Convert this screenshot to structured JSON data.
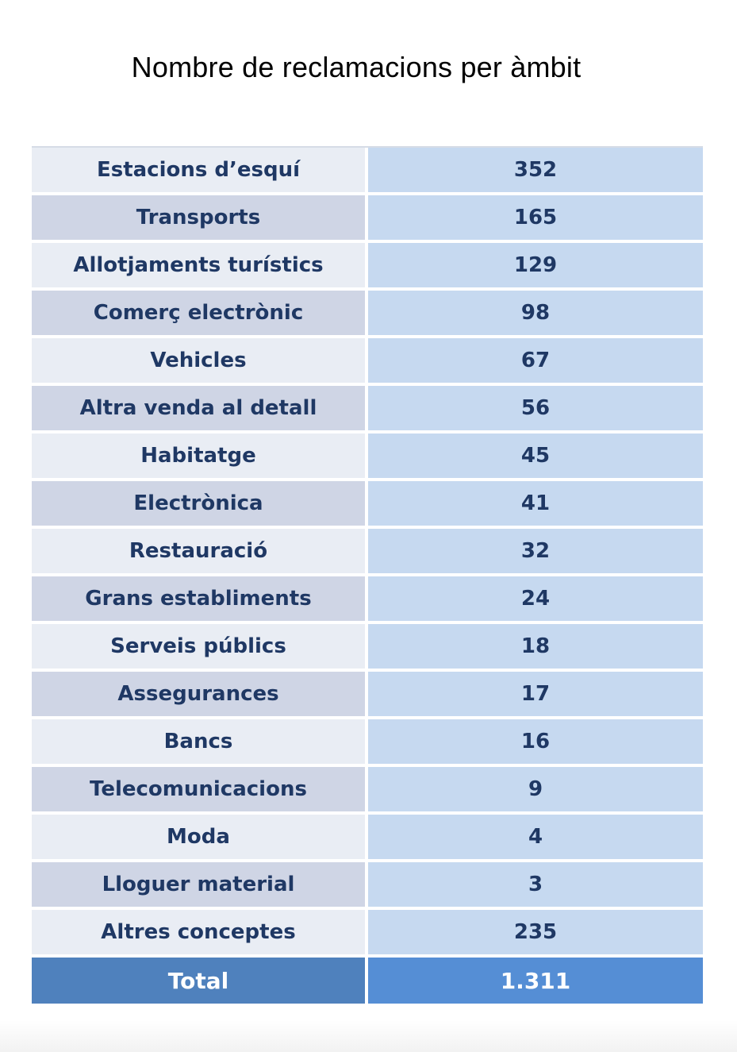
{
  "chart_data": {
    "type": "table",
    "title": "Nombre de reclamacions per àmbit",
    "columns": [],
    "rows": [
      {
        "category": "Estacions d’esquí",
        "value": "352"
      },
      {
        "category": "Transports",
        "value": "165"
      },
      {
        "category": "Allotjaments turístics",
        "value": "129"
      },
      {
        "category": "Comerç electrònic",
        "value": "98"
      },
      {
        "category": "Vehicles",
        "value": "67"
      },
      {
        "category": "Altra venda al detall",
        "value": "56"
      },
      {
        "category": "Habitatge",
        "value": "45"
      },
      {
        "category": "Electrònica",
        "value": "41"
      },
      {
        "category": "Restauració",
        "value": "32"
      },
      {
        "category": "Grans establiments",
        "value": "24"
      },
      {
        "category": "Serveis públics",
        "value": "18"
      },
      {
        "category": "Assegurances",
        "value": "17"
      },
      {
        "category": "Bancs",
        "value": "16"
      },
      {
        "category": "Telecomunicacions",
        "value": "9"
      },
      {
        "category": "Moda",
        "value": "4"
      },
      {
        "category": "Lloguer material",
        "value": "3"
      },
      {
        "category": "Altres conceptes",
        "value": "235"
      }
    ],
    "total": {
      "label": "Total",
      "value": "1.311"
    }
  },
  "colors": {
    "text": "#1f3864",
    "label_light": "#e9edf4",
    "label_dark": "#cfd5e5",
    "value_bg": "#c6d9f0",
    "total_label_bg": "#4f81bd",
    "total_value_bg": "#558ed5",
    "total_text": "#ffffff"
  }
}
